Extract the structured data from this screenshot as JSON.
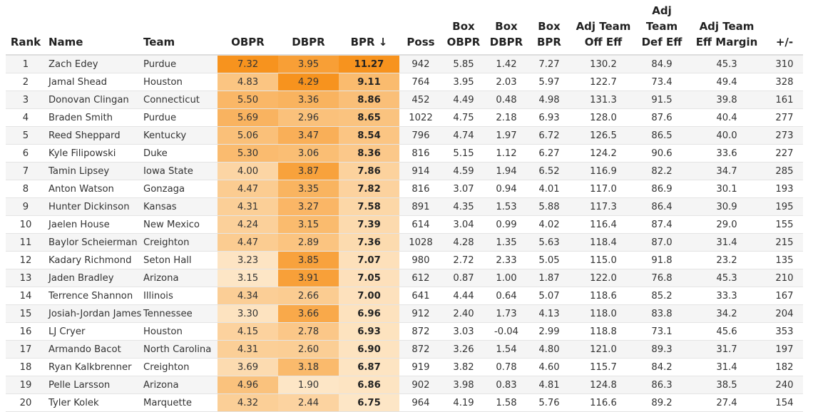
{
  "headers": {
    "rank": "Rank",
    "name": "Name",
    "team": "Team",
    "obpr": "OBPR",
    "dbpr": "DBPR",
    "bpr": "BPR ↓",
    "poss": "Poss",
    "box_obpr": "Box OBPR",
    "box_dbpr": "Box DBPR",
    "box_bpr": "Box BPR",
    "adj_off": "Adj Team Off Eff",
    "adj_def": "Adj Team Def Eff",
    "adj_margin": "Adj Team Eff Margin",
    "pm": "+/-"
  },
  "heat_colors": {
    "low": "#fde6c6",
    "high": "#f7931e"
  },
  "rows": [
    [
      "1",
      "Zach Edey",
      "Purdue",
      "7.32",
      "3.95",
      "11.27",
      "942",
      "5.85",
      "1.42",
      "7.27",
      "130.2",
      "84.9",
      "45.3",
      "310"
    ],
    [
      "2",
      "Jamal Shead",
      "Houston",
      "4.83",
      "4.29",
      "9.11",
      "764",
      "3.95",
      "2.03",
      "5.97",
      "122.7",
      "73.4",
      "49.4",
      "328"
    ],
    [
      "3",
      "Donovan Clingan",
      "Connecticut",
      "5.50",
      "3.36",
      "8.86",
      "452",
      "4.49",
      "0.48",
      "4.98",
      "131.3",
      "91.5",
      "39.8",
      "161"
    ],
    [
      "4",
      "Braden Smith",
      "Purdue",
      "5.69",
      "2.96",
      "8.65",
      "1022",
      "4.75",
      "2.18",
      "6.93",
      "128.0",
      "87.6",
      "40.4",
      "277"
    ],
    [
      "5",
      "Reed Sheppard",
      "Kentucky",
      "5.06",
      "3.47",
      "8.54",
      "796",
      "4.74",
      "1.97",
      "6.72",
      "126.5",
      "86.5",
      "40.0",
      "273"
    ],
    [
      "6",
      "Kyle Filipowski",
      "Duke",
      "5.30",
      "3.06",
      "8.36",
      "816",
      "5.15",
      "1.12",
      "6.27",
      "124.2",
      "90.6",
      "33.6",
      "227"
    ],
    [
      "7",
      "Tamin Lipsey",
      "Iowa State",
      "4.00",
      "3.87",
      "7.86",
      "914",
      "4.59",
      "1.94",
      "6.52",
      "116.9",
      "82.2",
      "34.7",
      "285"
    ],
    [
      "8",
      "Anton Watson",
      "Gonzaga",
      "4.47",
      "3.35",
      "7.82",
      "816",
      "3.07",
      "0.94",
      "4.01",
      "117.0",
      "86.9",
      "30.1",
      "193"
    ],
    [
      "9",
      "Hunter Dickinson",
      "Kansas",
      "4.31",
      "3.27",
      "7.58",
      "891",
      "4.35",
      "1.53",
      "5.88",
      "117.3",
      "86.4",
      "30.9",
      "195"
    ],
    [
      "10",
      "Jaelen House",
      "New Mexico",
      "4.24",
      "3.15",
      "7.39",
      "614",
      "3.04",
      "0.99",
      "4.02",
      "116.4",
      "87.4",
      "29.0",
      "155"
    ],
    [
      "11",
      "Baylor Scheierman",
      "Creighton",
      "4.47",
      "2.89",
      "7.36",
      "1028",
      "4.28",
      "1.35",
      "5.63",
      "118.4",
      "87.0",
      "31.4",
      "215"
    ],
    [
      "12",
      "Kadary Richmond",
      "Seton Hall",
      "3.23",
      "3.85",
      "7.07",
      "980",
      "2.72",
      "2.33",
      "5.05",
      "115.0",
      "91.8",
      "23.2",
      "135"
    ],
    [
      "13",
      "Jaden Bradley",
      "Arizona",
      "3.15",
      "3.91",
      "7.05",
      "612",
      "0.87",
      "1.00",
      "1.87",
      "122.0",
      "76.8",
      "45.3",
      "210"
    ],
    [
      "14",
      "Terrence Shannon",
      "Illinois",
      "4.34",
      "2.66",
      "7.00",
      "641",
      "4.44",
      "0.64",
      "5.07",
      "118.6",
      "85.2",
      "33.3",
      "167"
    ],
    [
      "15",
      "Josiah-Jordan James",
      "Tennessee",
      "3.30",
      "3.66",
      "6.96",
      "912",
      "2.40",
      "1.73",
      "4.13",
      "118.0",
      "83.8",
      "34.2",
      "204"
    ],
    [
      "16",
      "LJ Cryer",
      "Houston",
      "4.15",
      "2.78",
      "6.93",
      "872",
      "3.03",
      "-0.04",
      "2.99",
      "118.8",
      "73.1",
      "45.6",
      "353"
    ],
    [
      "17",
      "Armando Bacot",
      "North Carolina",
      "4.31",
      "2.60",
      "6.90",
      "872",
      "3.26",
      "1.54",
      "4.80",
      "121.0",
      "89.3",
      "31.7",
      "197"
    ],
    [
      "18",
      "Ryan Kalkbrenner",
      "Creighton",
      "3.69",
      "3.18",
      "6.87",
      "919",
      "3.82",
      "0.78",
      "4.60",
      "115.7",
      "84.2",
      "31.4",
      "182"
    ],
    [
      "19",
      "Pelle Larsson",
      "Arizona",
      "4.96",
      "1.90",
      "6.86",
      "902",
      "3.98",
      "0.83",
      "4.81",
      "124.8",
      "86.3",
      "38.5",
      "240"
    ],
    [
      "20",
      "Tyler Kolek",
      "Marquette",
      "4.32",
      "2.44",
      "6.75",
      "964",
      "4.19",
      "1.58",
      "5.76",
      "116.6",
      "89.2",
      "27.4",
      "154"
    ]
  ]
}
